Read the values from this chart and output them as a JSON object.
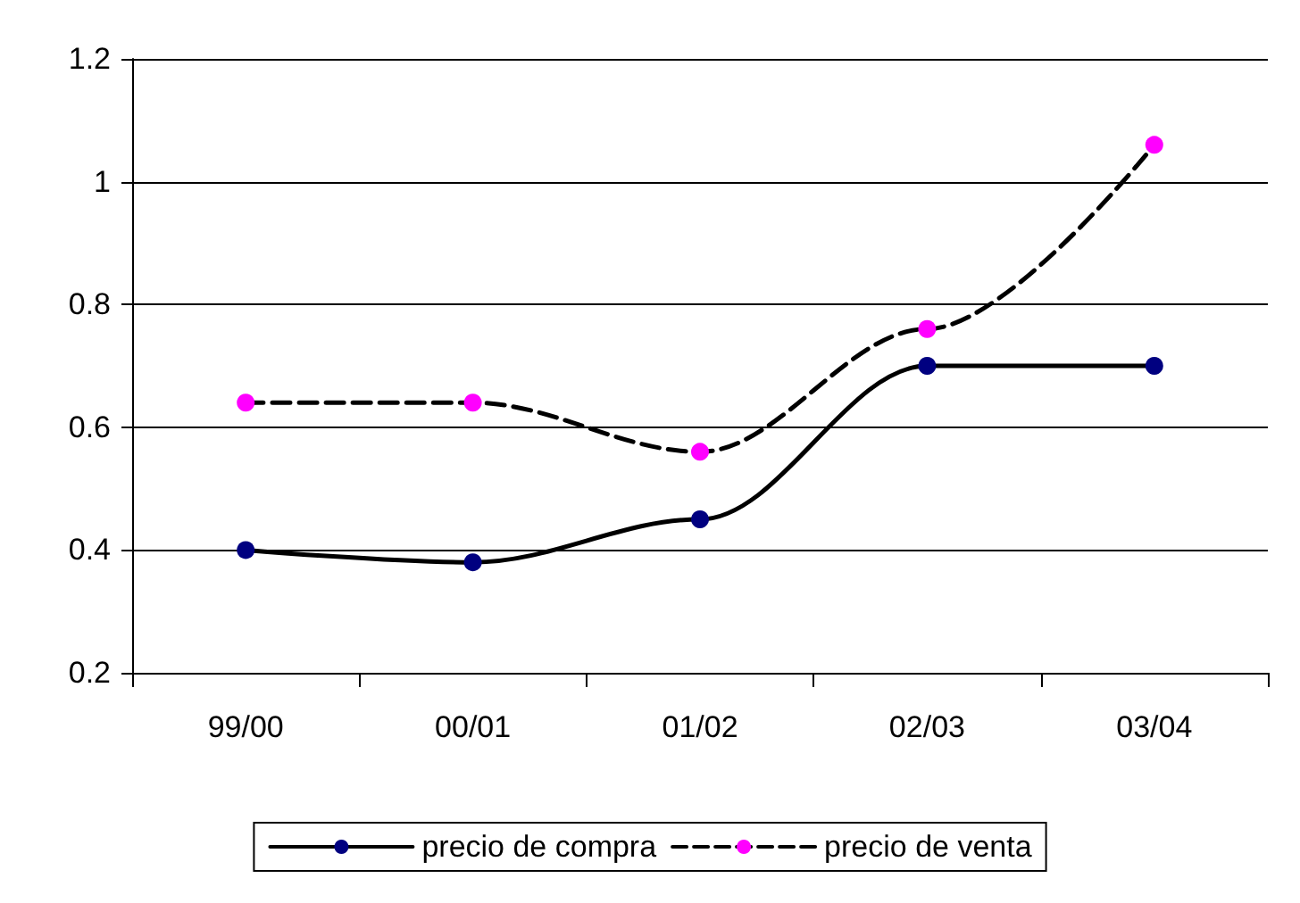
{
  "chart_data": {
    "type": "line",
    "categories": [
      "99/00",
      "00/01",
      "01/02",
      "02/03",
      "03/04"
    ],
    "series": [
      {
        "name": "precio de compra",
        "color": "#000080",
        "values": [
          0.4,
          0.38,
          0.45,
          0.7,
          0.7
        ],
        "line_style": "solid"
      },
      {
        "name": "precio de venta",
        "color": "#ff00ff",
        "values": [
          0.64,
          0.64,
          0.56,
          0.76,
          1.06
        ],
        "line_style": "dashed"
      }
    ],
    "ylim": [
      0.2,
      1.2
    ],
    "yticks": [
      0.2,
      0.4,
      0.6,
      0.8,
      1,
      1.2
    ],
    "grid": "y",
    "legend": "bottom",
    "marker": "circle"
  }
}
